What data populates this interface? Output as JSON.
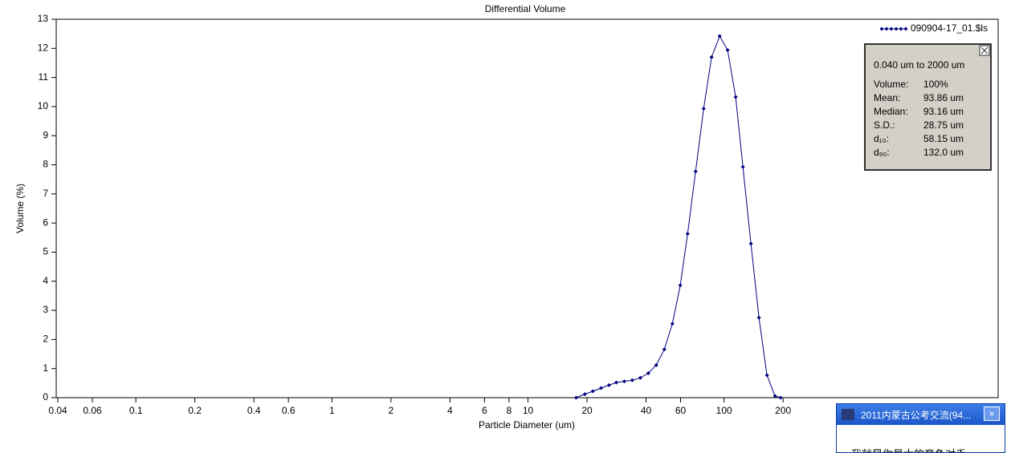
{
  "chart_data": {
    "type": "line",
    "title": "Differential Volume",
    "x_label": "Particle Diameter (um)",
    "y_label": "Volume (%)",
    "log_x": true,
    "xlim": [
      0.04,
      2500
    ],
    "ylim": [
      0,
      13
    ],
    "xticks": [
      0.04,
      0.06,
      0.1,
      0.2,
      0.4,
      0.6,
      1,
      2,
      4,
      6,
      8,
      10,
      20,
      40,
      60,
      100,
      200
    ],
    "yticks": [
      0,
      1,
      2,
      3,
      4,
      5,
      6,
      7,
      8,
      9,
      10,
      11,
      12,
      13
    ],
    "series": [
      {
        "name": "090904-17_01.$ls",
        "color": "#000080",
        "x": [
          17.6,
          19.5,
          21.4,
          23.6,
          25.9,
          28.2,
          31.0,
          34.0,
          37.4,
          41.1,
          45.1,
          49.6,
          54.5,
          59.8,
          65.2,
          71.6,
          78.7,
          86.4,
          95.0,
          104.3,
          114.6,
          124.8,
          137.1,
          150.7,
          165.5,
          181.9,
          194.2
        ],
        "values": [
          0,
          0.12,
          0.22,
          0.33,
          0.43,
          0.52,
          0.56,
          0.6,
          0.68,
          0.84,
          1.12,
          1.66,
          2.54,
          3.86,
          5.63,
          7.77,
          9.93,
          11.7,
          12.42,
          11.94,
          10.33,
          7.93,
          5.29,
          2.75,
          0.77,
          0.06,
          0
        ]
      }
    ],
    "stats": {
      "range": "0.040 um to 2000 um",
      "rows": [
        [
          "Volume:",
          "100%"
        ],
        [
          "Mean:",
          "93.86 um"
        ],
        [
          "Median:",
          "93.16 um"
        ],
        [
          "S.D.:",
          "28.75 um"
        ],
        [
          "d₁₀:",
          "58.15 um"
        ],
        [
          "d₉₀:",
          "132.0 um"
        ]
      ]
    }
  },
  "popup": {
    "title": "2011内蒙古公考交流(94...",
    "message": "我就是你最大的竞争对手..."
  }
}
